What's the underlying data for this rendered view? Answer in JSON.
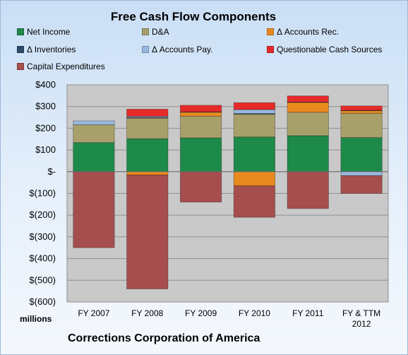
{
  "chart_data": {
    "type": "bar",
    "stacked": true,
    "title": "Free Cash Flow Components",
    "categories": [
      "FY 2007",
      "FY 2008",
      "FY 2009",
      "FY 2010",
      "FY 2011",
      "FY & TTM 2012"
    ],
    "ylim": [
      -600,
      400
    ],
    "yticks": [
      400,
      300,
      200,
      100,
      0,
      -100,
      -200,
      -300,
      -400,
      -500,
      -600
    ],
    "ytick_labels": [
      "$400",
      "$300",
      "$200",
      "$100",
      "$-",
      "$(100)",
      "$(200)",
      "$(300)",
      "$(400)",
      "$(500)",
      "$(600)"
    ],
    "unit_label": "millions",
    "grid": true,
    "legend_position": "top",
    "series": [
      {
        "name": "Net Income",
        "color": "#1e8a4a",
        "values": [
          134,
          152,
          156,
          160,
          166,
          157
        ]
      },
      {
        "name": "D&A",
        "color": "#a8a06a",
        "values": [
          82,
          95,
          100,
          105,
          108,
          112
        ]
      },
      {
        "name": "Δ Accounts Rec.",
        "color": "#e98a1e",
        "values": [
          0,
          -15,
          18,
          -65,
          45,
          12
        ]
      },
      {
        "name": "Δ Inventories",
        "color": "#2c4a6b",
        "values": [
          0,
          3,
          2,
          3,
          2,
          2
        ]
      },
      {
        "name": "Δ Accounts Pay.",
        "color": "#9ab9e0",
        "values": [
          18,
          5,
          0,
          18,
          0,
          -18
        ]
      },
      {
        "name": "Questionable Cash Sources",
        "color": "#e62a2a",
        "values": [
          0,
          33,
          30,
          32,
          28,
          20
        ]
      },
      {
        "name": "Capital Expenditures",
        "color": "#a64e4e",
        "values": [
          -350,
          -525,
          -140,
          -145,
          -170,
          -82
        ]
      }
    ]
  },
  "footer": "Corrections Corporation of America"
}
